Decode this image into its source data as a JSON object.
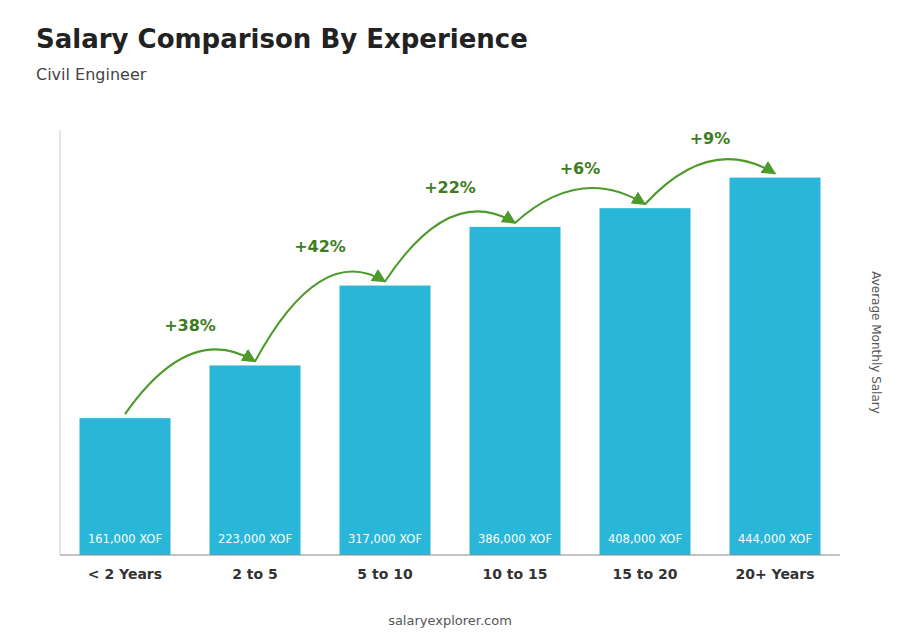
{
  "chart_data": {
    "type": "bar",
    "title": "Salary Comparison By Experience",
    "subtitle": "Civil Engineer",
    "ylabel": "Average Monthly Salary",
    "categories": [
      "< 2 Years",
      "2 to 5",
      "5 to 10",
      "10 to 15",
      "15 to 20",
      "20+ Years"
    ],
    "values": [
      161000,
      223000,
      317000,
      386000,
      408000,
      444000
    ],
    "value_labels": [
      "161,000 XOF",
      "223,000 XOF",
      "317,000 XOF",
      "386,000 XOF",
      "408,000 XOF",
      "444,000 XOF"
    ],
    "data_labels": true,
    "changes": [
      38,
      42,
      22,
      6,
      9
    ],
    "change_labels": [
      "+38%",
      "+42%",
      "+22%",
      "+6%",
      "+9%"
    ],
    "annotations": [
      "salaryexplorer.com"
    ],
    "color": "#29b6d8",
    "ylim": [
      0,
      500000
    ],
    "grid": false,
    "tick_labels": "x"
  }
}
